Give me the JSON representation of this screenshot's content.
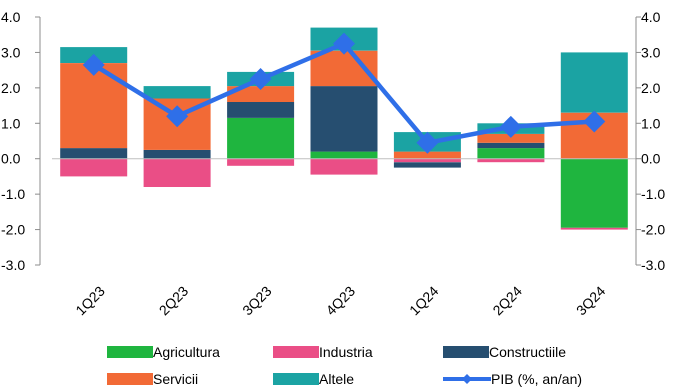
{
  "chart_data": {
    "type": "bar",
    "stacked": true,
    "categories": [
      "1Q23",
      "2Q23",
      "3Q23",
      "4Q23",
      "1Q24",
      "2Q24",
      "3Q24"
    ],
    "ylim": [
      -3.0,
      4.0
    ],
    "yticks": [
      "4.0",
      "3.0",
      "2.0",
      "1.0",
      "0.0",
      "-1.0",
      "-2.0",
      "-3.0"
    ],
    "series": [
      {
        "name": "Agricultura",
        "color": "#1fb53f",
        "values": [
          0.0,
          0.0,
          1.15,
          0.2,
          0.0,
          0.3,
          -1.95
        ]
      },
      {
        "name": "Industria",
        "color": "#ea4e86",
        "values": [
          -0.5,
          -0.8,
          -0.2,
          -0.45,
          -0.1,
          -0.1,
          -0.05
        ]
      },
      {
        "name": "Constructiile",
        "color": "#264e70",
        "values": [
          0.3,
          0.25,
          0.45,
          1.85,
          -0.15,
          0.15,
          0.0
        ]
      },
      {
        "name": "Servicii",
        "color": "#f26a36",
        "values": [
          2.4,
          1.45,
          0.45,
          1.0,
          0.2,
          0.25,
          1.3
        ]
      },
      {
        "name": "Altele",
        "color": "#1ba3a3",
        "values": [
          0.45,
          0.35,
          0.4,
          0.65,
          0.55,
          0.3,
          1.7
        ]
      }
    ],
    "line": {
      "name": "PIB (%, an/an)",
      "color": "#2f6fe8",
      "values": [
        2.65,
        1.2,
        2.25,
        3.25,
        0.45,
        0.9,
        1.05
      ]
    },
    "grid": false,
    "legend_position": "bottom"
  }
}
